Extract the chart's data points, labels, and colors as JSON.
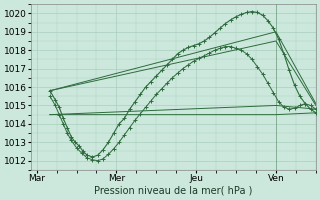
{
  "title": "Pression niveau de la mer( hPa )",
  "bg_color": "#cce8dc",
  "grid_color": "#aacfbf",
  "line_color": "#2d6b3c",
  "ylim": [
    1011.5,
    1020.5
  ],
  "yticks": [
    1012,
    1013,
    1014,
    1015,
    1016,
    1017,
    1018,
    1019,
    1020
  ],
  "xtick_labels": [
    "Mar",
    "Mer",
    "Jeu",
    "Ven"
  ],
  "xtick_pos": [
    0,
    3,
    6,
    9
  ],
  "xlim": [
    -0.2,
    10.5
  ],
  "vline_x": 9.0,
  "straight_lines": [
    {
      "x": [
        0.5,
        9.0,
        10.5
      ],
      "y": [
        1015.8,
        1019.0,
        1015.1
      ]
    },
    {
      "x": [
        0.5,
        9.0,
        10.5
      ],
      "y": [
        1015.8,
        1018.5,
        1015.0
      ]
    },
    {
      "x": [
        0.5,
        9.0,
        10.5
      ],
      "y": [
        1014.5,
        1015.0,
        1014.8
      ]
    },
    {
      "x": [
        0.5,
        9.0,
        10.5
      ],
      "y": [
        1014.5,
        1014.5,
        1014.6
      ]
    }
  ],
  "noisy_line": {
    "x": [
      0.5,
      0.7,
      0.85,
      1.0,
      1.15,
      1.3,
      1.45,
      1.6,
      1.75,
      1.9,
      2.1,
      2.3,
      2.5,
      2.7,
      2.9,
      3.1,
      3.3,
      3.5,
      3.7,
      3.9,
      4.1,
      4.3,
      4.5,
      4.7,
      4.9,
      5.1,
      5.3,
      5.5,
      5.7,
      5.9,
      6.1,
      6.3,
      6.5,
      6.7,
      6.9,
      7.1,
      7.3,
      7.5,
      7.7,
      7.9,
      8.1,
      8.3,
      8.5,
      8.7,
      8.9,
      9.1,
      9.3,
      9.5,
      9.7,
      9.9,
      10.1,
      10.3,
      10.5
    ],
    "y": [
      1015.8,
      1015.3,
      1014.9,
      1014.3,
      1013.8,
      1013.3,
      1013.0,
      1012.8,
      1012.5,
      1012.3,
      1012.2,
      1012.3,
      1012.6,
      1013.0,
      1013.5,
      1014.0,
      1014.3,
      1014.8,
      1015.2,
      1015.6,
      1016.0,
      1016.3,
      1016.6,
      1016.9,
      1017.2,
      1017.5,
      1017.8,
      1018.0,
      1018.15,
      1018.25,
      1018.35,
      1018.5,
      1018.7,
      1018.95,
      1019.2,
      1019.45,
      1019.65,
      1019.82,
      1019.95,
      1020.05,
      1020.1,
      1020.05,
      1019.9,
      1019.6,
      1019.2,
      1018.6,
      1017.8,
      1016.9,
      1016.1,
      1015.5,
      1015.1,
      1014.8,
      1014.6
    ]
  },
  "noisy_line2": {
    "x": [
      0.5,
      0.7,
      0.85,
      1.0,
      1.15,
      1.3,
      1.5,
      1.7,
      1.9,
      2.1,
      2.3,
      2.5,
      2.7,
      2.9,
      3.1,
      3.3,
      3.5,
      3.7,
      3.9,
      4.1,
      4.3,
      4.5,
      4.7,
      4.9,
      5.1,
      5.3,
      5.5,
      5.7,
      5.9,
      6.1,
      6.3,
      6.5,
      6.7,
      6.9,
      7.1,
      7.3,
      7.5,
      7.7,
      7.9,
      8.1,
      8.3,
      8.5,
      8.7,
      8.9,
      9.1,
      9.3,
      9.5,
      9.7,
      9.9,
      10.1,
      10.3,
      10.5
    ],
    "y": [
      1015.5,
      1015.0,
      1014.5,
      1014.0,
      1013.5,
      1013.1,
      1012.7,
      1012.4,
      1012.15,
      1012.05,
      1012.0,
      1012.1,
      1012.35,
      1012.65,
      1013.0,
      1013.4,
      1013.8,
      1014.2,
      1014.55,
      1014.9,
      1015.25,
      1015.6,
      1015.9,
      1016.2,
      1016.5,
      1016.75,
      1017.0,
      1017.2,
      1017.4,
      1017.55,
      1017.7,
      1017.85,
      1018.0,
      1018.1,
      1018.2,
      1018.2,
      1018.1,
      1018.0,
      1017.8,
      1017.5,
      1017.1,
      1016.7,
      1016.2,
      1015.7,
      1015.2,
      1014.9,
      1014.8,
      1014.85,
      1015.0,
      1015.1,
      1015.0,
      1014.8
    ]
  }
}
